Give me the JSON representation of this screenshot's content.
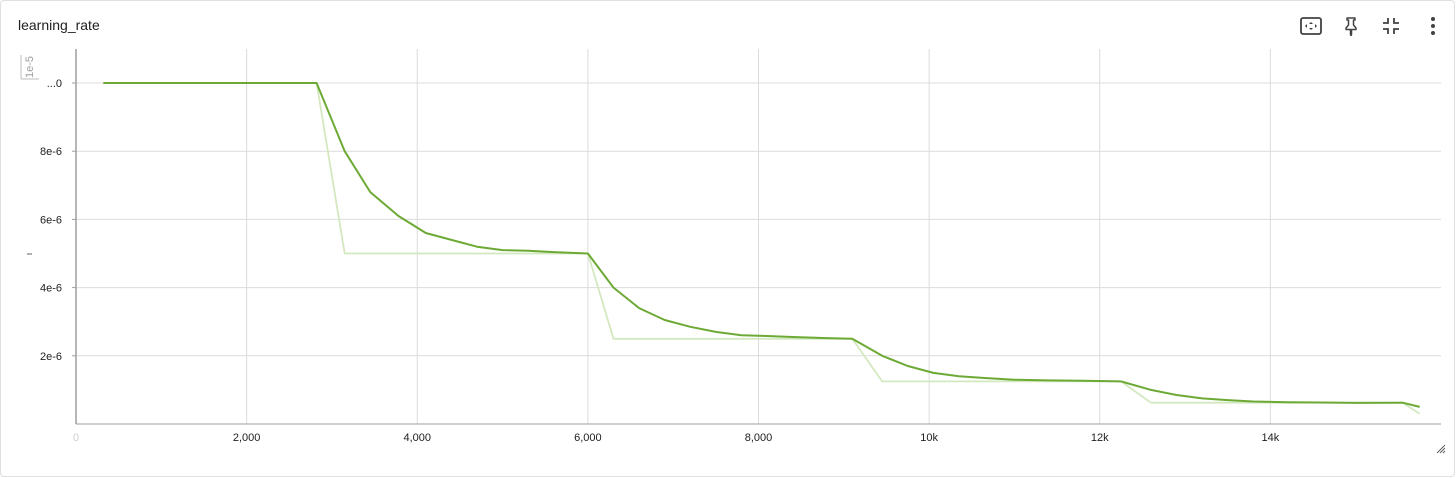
{
  "card": {
    "title": "learning_rate",
    "toolbar": [
      {
        "name": "fit-domain-button",
        "icon": "fit-to-data-icon"
      },
      {
        "name": "pin-button",
        "icon": "pin-icon"
      },
      {
        "name": "collapse-button",
        "icon": "fullscreen-exit-icon"
      },
      {
        "name": "more-options-button",
        "icon": "more-vert-icon"
      }
    ]
  },
  "colors": {
    "smoothed": "#6daa35",
    "raw": "#d4e8c0",
    "grid": "#dcdcdc",
    "axis": "#9e9e9e"
  },
  "chart_data": {
    "type": "line",
    "title": "learning_rate",
    "xlabel": "",
    "ylabel": "",
    "xlim": [
      0,
      16000
    ],
    "ylim": [
      0,
      1e-05
    ],
    "y_exponent_label": "1e-5",
    "x_ticks": [
      0,
      2000,
      4000,
      6000,
      8000,
      10000,
      12000,
      14000
    ],
    "x_tick_labels": [
      "0",
      "2,000",
      "4,000",
      "6,000",
      "8,000",
      "10k",
      "12k",
      "14k"
    ],
    "y_ticks": [
      2e-06,
      4e-06,
      6e-06,
      8e-06,
      1e-05
    ],
    "y_tick_labels": [
      "2e-6",
      "4e-6",
      "6e-6",
      "8e-6",
      "...0"
    ],
    "grid": true,
    "series": [
      {
        "role": "raw",
        "x": [
          320,
          2820,
          3150,
          6000,
          6300,
          9100,
          9450,
          12250,
          12600,
          15550,
          15750
        ],
        "y": [
          1e-05,
          1e-05,
          5e-06,
          5e-06,
          2.5e-06,
          2.5e-06,
          1.25e-06,
          1.25e-06,
          6.25e-07,
          6.25e-07,
          3e-07
        ]
      },
      {
        "role": "smoothed",
        "x": [
          320,
          2820,
          3150,
          3450,
          3780,
          4100,
          4400,
          4700,
          5000,
          5300,
          5600,
          6000,
          6300,
          6600,
          6900,
          7200,
          7500,
          7800,
          8100,
          8400,
          8800,
          9100,
          9450,
          9750,
          10050,
          10350,
          10650,
          11000,
          11400,
          11800,
          12250,
          12600,
          12900,
          13200,
          13500,
          13800,
          14200,
          14600,
          15000,
          15550,
          15750
        ],
        "y": [
          1e-05,
          1e-05,
          8e-06,
          6.8e-06,
          6.1e-06,
          5.6e-06,
          5.4e-06,
          5.2e-06,
          5.1e-06,
          5.08e-06,
          5.04e-06,
          5e-06,
          4e-06,
          3.4e-06,
          3.05e-06,
          2.85e-06,
          2.7e-06,
          2.6e-06,
          2.58e-06,
          2.55e-06,
          2.52e-06,
          2.5e-06,
          2e-06,
          1.7e-06,
          1.5e-06,
          1.4e-06,
          1.35e-06,
          1.3e-06,
          1.28e-06,
          1.27e-06,
          1.25e-06,
          1e-06,
          8.5e-07,
          7.5e-07,
          7e-07,
          6.6e-07,
          6.4e-07,
          6.3e-07,
          6.2e-07,
          6.25e-07,
          5e-07
        ]
      }
    ]
  }
}
